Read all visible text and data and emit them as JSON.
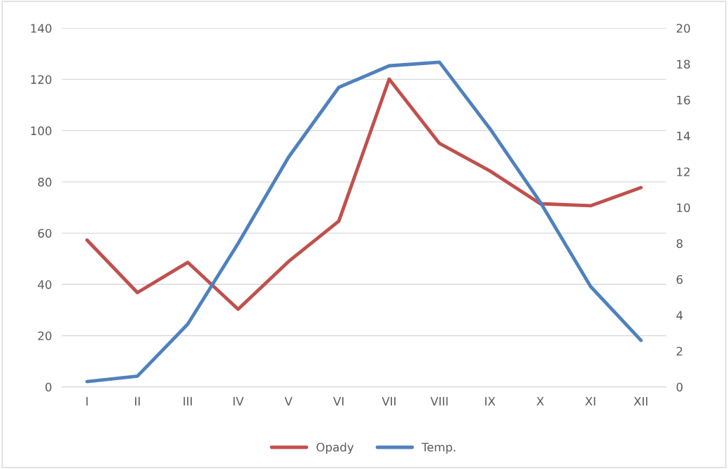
{
  "chart_data": {
    "type": "line",
    "categories": [
      "I",
      "II",
      "III",
      "IV",
      "V",
      "VI",
      "VII",
      "VIII",
      "IX",
      "X",
      "XI",
      "XII"
    ],
    "series": [
      {
        "name": "Opady",
        "color": "#c0504d",
        "values": [
          57.3,
          36.8,
          48.6,
          30.3,
          48.9,
          64.7,
          120.1,
          95,
          84.3,
          71.5,
          70.7,
          77.8
        ]
      },
      {
        "name": "Temp.",
        "color": "#4f81bd",
        "axis": "y2",
        "values": [
          0.3,
          0.6,
          3.5,
          8.0,
          12.8,
          16.7,
          17.9,
          18.1,
          14.4,
          10.3,
          5.6,
          2.6
        ]
      }
    ],
    "ylim": [
      0,
      140
    ],
    "yticks": [
      0,
      20,
      40,
      60,
      80,
      100,
      120,
      140
    ],
    "y2lim": [
      0,
      20
    ],
    "y2ticks": [
      0,
      2,
      4,
      6,
      8,
      10,
      12,
      14,
      16,
      18,
      20
    ],
    "grid": "y",
    "legend": "bottom",
    "marker": "none",
    "line_style": "solid"
  }
}
